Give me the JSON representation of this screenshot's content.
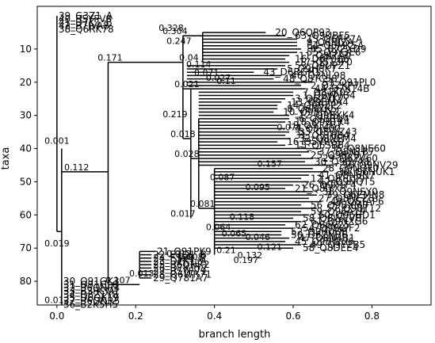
{
  "chart_data": {
    "type": "tree",
    "xlabel": "branch length",
    "ylabel": "taxa",
    "xlim": [
      -0.05,
      0.95
    ],
    "ylim": [
      90,
      0
    ],
    "xticks": [
      0.0,
      0.2,
      0.4,
      0.6,
      0.8
    ],
    "xtick_labels": [
      "0.0",
      "0.2",
      "0.4",
      "0.6",
      "0.8"
    ],
    "yticks": [
      10,
      20,
      30,
      40,
      50,
      60,
      70,
      80
    ],
    "ytick_labels": [
      "10",
      "20",
      "30",
      "40",
      "50",
      "60",
      "70",
      "80"
    ],
    "leaves": [
      {
        "label": "39_G3Z1_A",
        "x": 0.0,
        "y": 0
      },
      {
        "label": "40_B5YFV8",
        "x": 0.0,
        "y": 1
      },
      {
        "label": "41_D7K1_B",
        "x": 0.0,
        "y": 2
      },
      {
        "label": "42_B7JVA8",
        "x": 0.0,
        "y": 3
      },
      {
        "label": "38_Q6RK78",
        "x": 0.0,
        "y": 4
      },
      {
        "label": "20_Q6QP93",
        "x": 0.55,
        "y": 5
      },
      {
        "label": "63_Q9UBF5",
        "x": 0.6,
        "y": 6
      },
      {
        "label": "15_Q6RK7A",
        "x": 0.63,
        "y": 7
      },
      {
        "label": "9_Q6NJ2A",
        "x": 0.63,
        "y": 8
      },
      {
        "label": "64_Q6MK5A",
        "x": 0.63,
        "y": 9
      },
      {
        "label": "65_B7ZXD9",
        "x": 0.64,
        "y": 10
      },
      {
        "label": "55_Q9Y3E6",
        "x": 0.63,
        "y": 11
      },
      {
        "label": "11_Q8IZA0",
        "x": 0.61,
        "y": 12
      },
      {
        "label": "16_D8P0B8",
        "x": 0.6,
        "y": 13
      },
      {
        "label": "17_Q5T3F0",
        "x": 0.61,
        "y": 14
      },
      {
        "label": "53_Q9UPZ1",
        "x": 0.6,
        "y": 15
      },
      {
        "label": "5_Q9H6K7",
        "x": 0.58,
        "y": 16
      },
      {
        "label": "43_D6RGH1",
        "x": 0.52,
        "y": 17
      },
      {
        "label": "46_Q2NL98",
        "x": 0.59,
        "y": 18
      },
      {
        "label": "48_Q8TC58",
        "x": 0.57,
        "y": 19
      },
      {
        "label": "51_Q91PL0",
        "x": 0.67,
        "y": 20
      },
      {
        "label": "2_Q2ZKP7",
        "x": 0.64,
        "y": 21
      },
      {
        "label": "44_D7K14B",
        "x": 0.65,
        "y": 22
      },
      {
        "label": "7_Q81K02",
        "x": 0.62,
        "y": 23
      },
      {
        "label": "1_Q8WVB4",
        "x": 0.62,
        "y": 24
      },
      {
        "label": "3_Q6ZVK7",
        "x": 0.6,
        "y": 25
      },
      {
        "label": "13_Q9BMA4",
        "x": 0.59,
        "y": 26
      },
      {
        "label": "14_Q9BZP2",
        "x": 0.58,
        "y": 27
      },
      {
        "label": "8_Q6NXK5",
        "x": 0.58,
        "y": 28
      },
      {
        "label": "10_Q9BHX2",
        "x": 0.57,
        "y": 29
      },
      {
        "label": "12_Q9BXK4",
        "x": 0.61,
        "y": 30
      },
      {
        "label": "6_Q9BRN4",
        "x": 0.61,
        "y": 31
      },
      {
        "label": "18_Q9BTK4",
        "x": 0.6,
        "y": 32
      },
      {
        "label": "19_Q91ZB7",
        "x": 0.58,
        "y": 33
      },
      {
        "label": "4_Q8IV00",
        "x": 0.6,
        "y": 34
      },
      {
        "label": "33_Q8WZ43",
        "x": 0.61,
        "y": 35
      },
      {
        "label": "31_Q5T6B4",
        "x": 0.6,
        "y": 36
      },
      {
        "label": "32_Q8NEM4",
        "x": 0.61,
        "y": 37
      },
      {
        "label": "16_Q5VRG0",
        "x": 0.58,
        "y": 38
      },
      {
        "label": "15_Q6SB64",
        "x": 0.6,
        "y": 39
      },
      {
        "label": "35_Q8NE60",
        "x": 0.69,
        "y": 40
      },
      {
        "label": "37_Q8N1B7",
        "x": 0.66,
        "y": 41
      },
      {
        "label": "25_Q9BV87",
        "x": 0.64,
        "y": 42
      },
      {
        "label": "29_Q6ZV60",
        "x": 0.67,
        "y": 43
      },
      {
        "label": "30_Q9BVA8",
        "x": 0.65,
        "y": 44
      },
      {
        "label": "36_Q9NV29",
        "x": 0.72,
        "y": 45
      },
      {
        "label": "28_Q9NQF0",
        "x": 0.67,
        "y": 46
      },
      {
        "label": "34_Q6NUK1",
        "x": 0.71,
        "y": 47
      },
      {
        "label": "41_Q8N6N7",
        "x": 0.66,
        "y": 48
      },
      {
        "label": "12_Q8TC29",
        "x": 0.64,
        "y": 49
      },
      {
        "label": "42_Q9NQT5",
        "x": 0.66,
        "y": 50
      },
      {
        "label": "26_Q9P1F4",
        "x": 0.62,
        "y": 51
      },
      {
        "label": "21_Q8IYX3",
        "x": 0.6,
        "y": 52
      },
      {
        "label": "38_Q9NSY0",
        "x": 0.67,
        "y": 53
      },
      {
        "label": "39_Q6ZMN8",
        "x": 0.68,
        "y": 54
      },
      {
        "label": "27_Q8NEZ3",
        "x": 0.66,
        "y": 55
      },
      {
        "label": "40_Q5TAP6",
        "x": 0.69,
        "y": 56
      },
      {
        "label": "56_Q9BXM0",
        "x": 0.64,
        "y": 57
      },
      {
        "label": "57_Q9BT12",
        "x": 0.68,
        "y": 58
      },
      {
        "label": "59_Q96A19",
        "x": 0.64,
        "y": 59
      },
      {
        "label": "60_Q96HD1",
        "x": 0.66,
        "y": 60
      },
      {
        "label": "58_Q8WVV8",
        "x": 0.62,
        "y": 61
      },
      {
        "label": "61_Q9NXG6",
        "x": 0.64,
        "y": 62
      },
      {
        "label": "62_Q86V25",
        "x": 0.6,
        "y": 63
      },
      {
        "label": "54_Q9BWF2",
        "x": 0.62,
        "y": 64
      },
      {
        "label": "52_Q9H0D6",
        "x": 0.59,
        "y": 65
      },
      {
        "label": "50_Q6ZNB6",
        "x": 0.59,
        "y": 66
      },
      {
        "label": "47_Q8N4B1",
        "x": 0.61,
        "y": 67
      },
      {
        "label": "45_Q9BWH6",
        "x": 0.6,
        "y": 68
      },
      {
        "label": "49_Q9Y2B5",
        "x": 0.64,
        "y": 69
      },
      {
        "label": "58_Q8DEE4",
        "x": 0.62,
        "y": 70
      },
      {
        "label": "21_Q91PK9",
        "x": 0.25,
        "y": 71
      },
      {
        "label": "22_E3Q1_B",
        "x": 0.24,
        "y": 72
      },
      {
        "label": "24_E3Z1_B",
        "x": 0.24,
        "y": 73
      },
      {
        "label": "23_D7K1_A",
        "x": 0.24,
        "y": 74
      },
      {
        "label": "25_B6QNR2",
        "x": 0.24,
        "y": 75
      },
      {
        "label": "26_D7K1Y2",
        "x": 0.24,
        "y": 76
      },
      {
        "label": "27_B5YFV9",
        "x": 0.24,
        "y": 77
      },
      {
        "label": "28_Q6WR71",
        "x": 0.24,
        "y": 78
      },
      {
        "label": "29_Q781A7",
        "x": 0.24,
        "y": 79
      },
      {
        "label": "30_Q91GK3",
        "x": 0.012,
        "y": 80
      },
      {
        "label": "31_Q91GL0",
        "x": 0.012,
        "y": 81
      },
      {
        "label": "32_B6QNR4",
        "x": 0.012,
        "y": 82
      },
      {
        "label": "33_B3RCM1",
        "x": 0.012,
        "y": 83
      },
      {
        "label": "34_Q8Z1Y8",
        "x": 0.012,
        "y": 84
      },
      {
        "label": "35_D6QK19",
        "x": 0.012,
        "y": 85
      },
      {
        "label": "37_B6QNR5",
        "x": 0.012,
        "y": 86
      },
      {
        "label": "36_B2K5H5",
        "x": 0.012,
        "y": 87
      }
    ],
    "branch_labels": [
      {
        "text": "0.328",
        "x": 0.29,
        "y": 5
      },
      {
        "text": "0.304",
        "x": 0.3,
        "y": 6
      },
      {
        "text": "0.247",
        "x": 0.31,
        "y": 9
      },
      {
        "text": "0.171",
        "x": 0.135,
        "y": 14
      },
      {
        "text": "0.04",
        "x": 0.335,
        "y": 14
      },
      {
        "text": "0.114",
        "x": 0.36,
        "y": 16
      },
      {
        "text": "0.071",
        "x": 0.38,
        "y": 18.5
      },
      {
        "text": "0.027",
        "x": 0.41,
        "y": 20
      },
      {
        "text": "0.11",
        "x": 0.43,
        "y": 21
      },
      {
        "text": "0.021",
        "x": 0.33,
        "y": 22
      },
      {
        "text": "0.219",
        "x": 0.3,
        "y": 31
      },
      {
        "text": "0.074",
        "x": 0.59,
        "y": 35
      },
      {
        "text": "0.018",
        "x": 0.32,
        "y": 37
      },
      {
        "text": "0.001",
        "x": 0.0,
        "y": 39
      },
      {
        "text": "0.028",
        "x": 0.33,
        "y": 43
      },
      {
        "text": "0.157",
        "x": 0.54,
        "y": 46
      },
      {
        "text": "0.112",
        "x": 0.05,
        "y": 47
      },
      {
        "text": "0.087",
        "x": 0.42,
        "y": 50
      },
      {
        "text": "0.095",
        "x": 0.51,
        "y": 53
      },
      {
        "text": "0.081",
        "x": 0.37,
        "y": 58
      },
      {
        "text": "0.017",
        "x": 0.32,
        "y": 61
      },
      {
        "text": "0.118",
        "x": 0.47,
        "y": 62
      },
      {
        "text": "0.064",
        "x": 0.41,
        "y": 65
      },
      {
        "text": "0.065",
        "x": 0.45,
        "y": 67
      },
      {
        "text": "0.046",
        "x": 0.51,
        "y": 68
      },
      {
        "text": "0.019",
        "x": 0.0,
        "y": 70
      },
      {
        "text": "0.121",
        "x": 0.54,
        "y": 71
      },
      {
        "text": "0.21",
        "x": 0.43,
        "y": 72
      },
      {
        "text": "0.012",
        "x": 0.31,
        "y": 73
      },
      {
        "text": "0.132",
        "x": 0.49,
        "y": 73.5
      },
      {
        "text": "0.108",
        "x": 0.34,
        "y": 74
      },
      {
        "text": "0.197",
        "x": 0.48,
        "y": 75
      },
      {
        "text": "0.013",
        "x": 0.215,
        "y": 79
      },
      {
        "text": "0.107",
        "x": 0.155,
        "y": 81
      },
      {
        "text": "0.012",
        "x": 0.0,
        "y": 87
      }
    ]
  }
}
